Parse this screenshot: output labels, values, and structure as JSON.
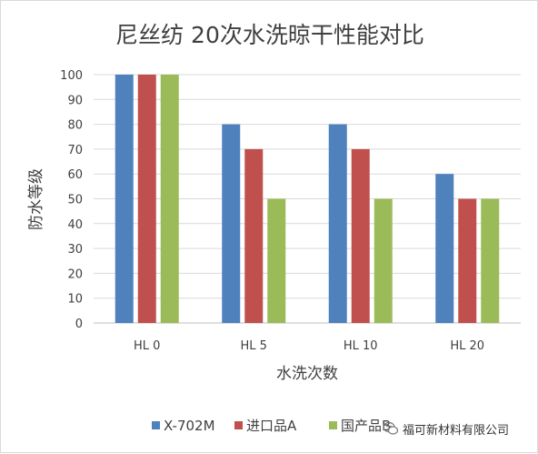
{
  "chart_data": {
    "type": "bar",
    "title": "尼丝纺  20次水洗晾干性能对比",
    "xlabel": "水洗次数",
    "ylabel": "防水等级",
    "categories": [
      "HL 0",
      "HL 5",
      "HL 10",
      "HL 20"
    ],
    "series": [
      {
        "name": "X-702M",
        "color": "#4f81bd",
        "values": [
          100,
          80,
          80,
          60
        ]
      },
      {
        "name": "进口品A",
        "color": "#c0504d",
        "values": [
          100,
          70,
          70,
          50
        ]
      },
      {
        "name": "国产品B",
        "color": "#9bbb59",
        "values": [
          100,
          50,
          50,
          50
        ]
      }
    ],
    "ylim": [
      0,
      100
    ],
    "yticks": [
      0,
      10,
      20,
      30,
      40,
      50,
      60,
      70,
      80,
      90,
      100
    ],
    "grid": true,
    "legend_position": "bottom"
  },
  "watermark": {
    "text": "福可新材料有限公司",
    "icon": "wechat-icon"
  }
}
